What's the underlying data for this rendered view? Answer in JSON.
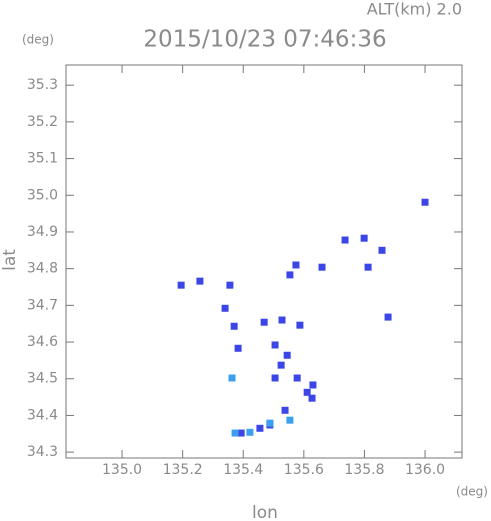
{
  "chart_data": {
    "type": "scatter",
    "title": "2015/10/23 07:46:36",
    "annotation": "ALT(km) 2.0",
    "x_label": "lon",
    "y_label": "lat",
    "x_unit": "(deg)",
    "y_unit": "(deg)",
    "xlim": [
      134.815,
      136.122
    ],
    "ylim": [
      34.284,
      35.355
    ],
    "xticks": [
      {
        "value": 135.0,
        "label": "135.0"
      },
      135.2,
      135.4,
      135.6,
      135.8,
      {
        "value": 136.0,
        "label": "136.0"
      }
    ],
    "yticks": [
      34.3,
      34.4,
      34.5,
      34.6,
      34.7,
      34.8,
      34.9,
      {
        "value": 35.0,
        "label": "35.0"
      },
      35.1,
      35.2,
      35.3
    ],
    "series": [
      {
        "color": "#3c46e6",
        "x": [
          135.195,
          135.257,
          135.356,
          135.574,
          135.554,
          135.66,
          135.736,
          135.799,
          135.858,
          135.812,
          135.878,
          135.34,
          135.37,
          135.469,
          135.528,
          135.587,
          135.505,
          135.545,
          135.525,
          135.505,
          135.578,
          135.611,
          135.627,
          135.63,
          135.538,
          135.488,
          135.455,
          135.393,
          135.383,
          136.0
        ],
        "values": [
          34.755,
          34.766,
          34.755,
          34.81,
          34.783,
          34.804,
          34.878,
          34.883,
          34.85,
          34.804,
          34.668,
          34.692,
          34.643,
          34.654,
          34.66,
          34.646,
          34.592,
          34.564,
          34.537,
          34.502,
          34.502,
          34.463,
          34.447,
          34.483,
          34.414,
          34.374,
          34.365,
          34.352,
          34.583,
          34.981
        ]
      },
      {
        "color": "#3ca0f0",
        "x": [
          135.363,
          135.373,
          135.422,
          135.488,
          135.554
        ],
        "values": [
          34.502,
          34.352,
          34.354,
          34.379,
          34.387
        ]
      }
    ]
  }
}
